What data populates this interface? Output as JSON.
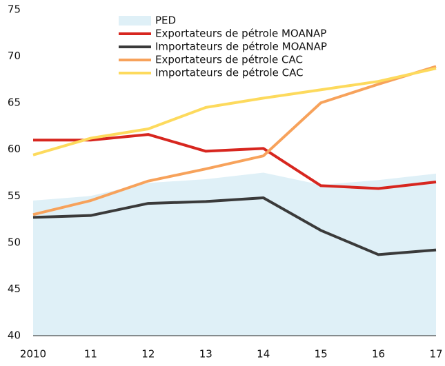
{
  "chart_data": {
    "type": "line",
    "categories": [
      "2010",
      "11",
      "12",
      "13",
      "14",
      "15",
      "16",
      "17"
    ],
    "ylim": [
      40,
      75
    ],
    "yticks": [
      40,
      45,
      50,
      55,
      60,
      65,
      70,
      75
    ],
    "grid": false,
    "series": [
      {
        "name": "PED",
        "color": "#dff0f7",
        "style": "area",
        "values": [
          54.5,
          55.0,
          56.4,
          56.8,
          57.5,
          56.2,
          56.7,
          57.4
        ]
      },
      {
        "name": "Exportateurs de pétrole MOANAP",
        "color": "#d7261f",
        "style": "line",
        "values": [
          61.0,
          61.0,
          61.6,
          59.8,
          60.1,
          56.1,
          55.8,
          56.5
        ]
      },
      {
        "name": "Importateurs de pétrole MOANAP",
        "color": "#3a3a3a",
        "style": "line",
        "values": [
          52.7,
          52.9,
          54.2,
          54.4,
          54.8,
          51.3,
          48.7,
          49.2
        ]
      },
      {
        "name": "Exportateurs de pétrole CAC",
        "color": "#f7a25b",
        "style": "line",
        "values": [
          53.0,
          54.5,
          56.6,
          57.9,
          59.3,
          65.0,
          67.0,
          68.9
        ]
      },
      {
        "name": "Importateurs de pétrole CAC",
        "color": "#fdda5d",
        "style": "line",
        "values": [
          59.4,
          61.2,
          62.2,
          64.5,
          65.5,
          66.4,
          67.3,
          68.7
        ]
      }
    ]
  }
}
